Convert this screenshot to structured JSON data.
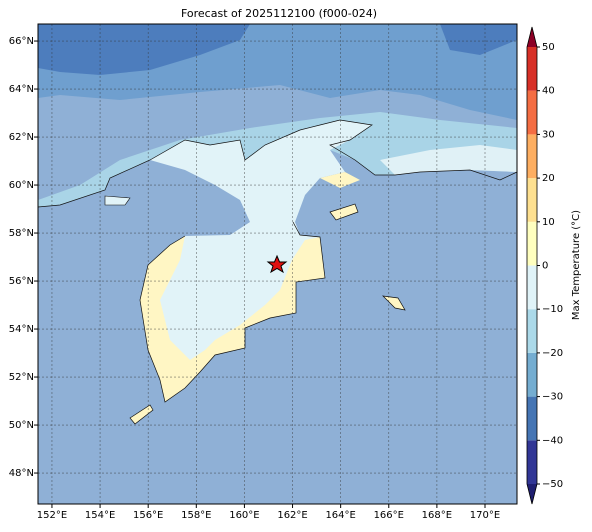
{
  "title": "Forecast of 2025112100 (f000-024)",
  "map": {
    "lonlim": [
      151.42,
      171.33
    ],
    "latlim": [
      46.71,
      66.71
    ],
    "lon_ticks": [
      {
        "value": 152,
        "label": "152°E"
      },
      {
        "value": 154,
        "label": "154°E"
      },
      {
        "value": 156,
        "label": "156°E"
      },
      {
        "value": 158,
        "label": "158°E"
      },
      {
        "value": 160,
        "label": "160°E"
      },
      {
        "value": 162,
        "label": "162°E"
      },
      {
        "value": 164,
        "label": "164°E"
      },
      {
        "value": 166,
        "label": "166°E"
      },
      {
        "value": 168,
        "label": "168°E"
      },
      {
        "value": 170,
        "label": "170°E"
      }
    ],
    "lat_ticks": [
      {
        "value": 48,
        "label": "48°N"
      },
      {
        "value": 50,
        "label": "50°N"
      },
      {
        "value": 52,
        "label": "52°N"
      },
      {
        "value": 54,
        "label": "54°N"
      },
      {
        "value": 56,
        "label": "56°N"
      },
      {
        "value": 58,
        "label": "58°N"
      },
      {
        "value": 60,
        "label": "60°N"
      },
      {
        "value": 62,
        "label": "62°N"
      },
      {
        "value": 64,
        "label": "64°N"
      },
      {
        "value": 66,
        "label": "66°N"
      }
    ],
    "grid": true
  },
  "colorbar": {
    "label": "Max Temperature (°C)",
    "lim": [
      -50,
      50
    ],
    "ticks": [
      {
        "value": -50,
        "label": "−50"
      },
      {
        "value": -40,
        "label": "−40"
      },
      {
        "value": -30,
        "label": "−30"
      },
      {
        "value": -20,
        "label": "−20"
      },
      {
        "value": -10,
        "label": "−10"
      },
      0,
      10,
      20,
      30,
      40,
      50
    ],
    "colors": [
      "#313695",
      "#4575b4",
      "#74add1",
      "#abd9e9",
      "#e0f3f8",
      "#ffffbf",
      "#fee090",
      "#fdae61",
      "#f46d43",
      "#d73027"
    ],
    "under_color": "#1f1f70",
    "over_color": "#8c0026"
  }
}
